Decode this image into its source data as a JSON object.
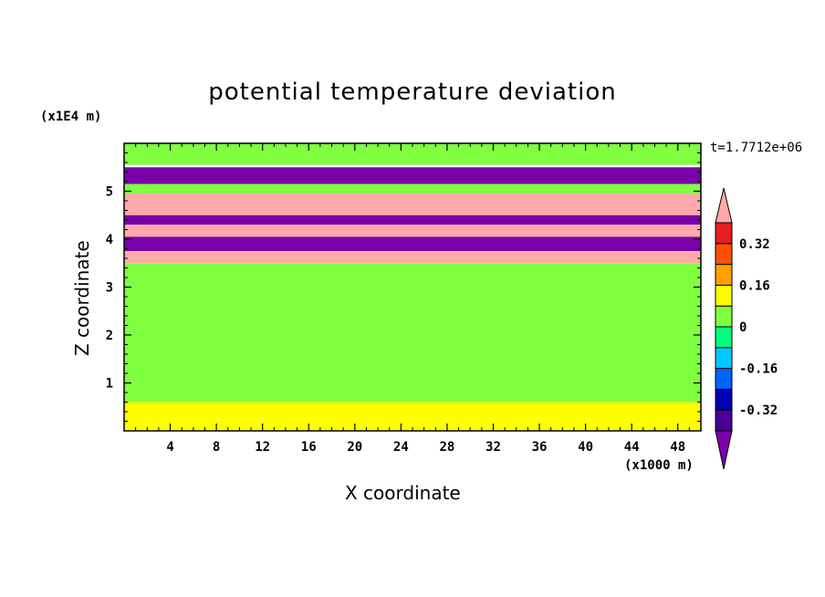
{
  "chart_data": {
    "type": "heatmap",
    "title": "potential temperature deviation",
    "xlabel": "X coordinate",
    "ylabel": "Z coordinate",
    "x_unit": "(x1000 m)",
    "y_unit": "(x1E4 m)",
    "time_label": "t=1.7712e+06",
    "xlim": [
      0,
      50
    ],
    "ylim": [
      0,
      6
    ],
    "x_ticks": [
      "4",
      "8",
      "12",
      "16",
      "20",
      "24",
      "28",
      "32",
      "36",
      "40",
      "44",
      "48"
    ],
    "y_ticks": [
      "1",
      "2",
      "3",
      "4",
      "5"
    ],
    "colorbar": {
      "levels": [
        -0.48,
        -0.4,
        -0.32,
        -0.24,
        -0.16,
        -0.08,
        0,
        0.08,
        0.16,
        0.24,
        0.32,
        0.4
      ],
      "labels": [
        "0.32",
        "0.16",
        "0",
        "-0.16",
        "-0.32"
      ],
      "colors": [
        "#7a00aa",
        "#4b0099",
        "#0000b4",
        "#0064ff",
        "#00c8ff",
        "#00ff80",
        "#80ff40",
        "#ffff00",
        "#ffa000",
        "#ff5000",
        "#e61e1e",
        "#ffaaaa"
      ]
    },
    "bands": [
      {
        "y0": 5.55,
        "y1": 6.0,
        "value": 0.04
      },
      {
        "y0": 5.15,
        "y1": 5.5,
        "value": -0.5
      },
      {
        "y0": 4.95,
        "y1": 5.15,
        "value": 0.02
      },
      {
        "y0": 4.5,
        "y1": 4.95,
        "value": 0.45
      },
      {
        "y0": 4.3,
        "y1": 4.5,
        "value": -0.5
      },
      {
        "y0": 4.05,
        "y1": 4.3,
        "value": 0.45
      },
      {
        "y0": 3.75,
        "y1": 4.05,
        "value": -0.5
      },
      {
        "y0": 3.5,
        "y1": 3.75,
        "value": 0.45
      },
      {
        "y0": 0.6,
        "y1": 3.5,
        "value": 0.04
      },
      {
        "y0": 0.0,
        "y1": 0.6,
        "value": 0.12
      }
    ]
  }
}
